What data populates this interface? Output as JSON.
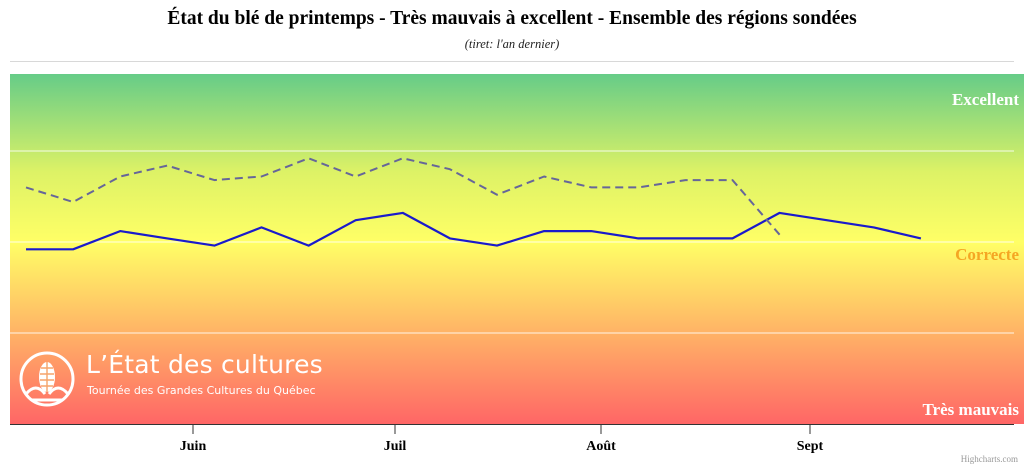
{
  "chart_data": {
    "type": "line",
    "title": "État du blé de printemps - Très mauvais à excellent - Ensemble des régions sondées",
    "subtitle": "(tiret: l'an dernier)",
    "y_scale": {
      "labels": [
        "Très mauvais",
        "Correcte",
        "Excellent"
      ],
      "ylim": [
        0,
        100
      ],
      "label_values": [
        0,
        50,
        100
      ],
      "gridlines": [
        25,
        50,
        75
      ]
    },
    "x_ticks": [
      "Juin",
      "Juil",
      "Août",
      "Sept"
    ],
    "series": [
      {
        "style": "solid",
        "color": "#1a1acc",
        "values": [
          48,
          48,
          53,
          51,
          49,
          54,
          49,
          56,
          58,
          51,
          49,
          53,
          53,
          51,
          51,
          51,
          58,
          56,
          54,
          51
        ]
      },
      {
        "style": "dashed",
        "color": "#666699",
        "values": [
          65,
          61,
          68,
          71,
          67,
          68,
          73,
          68,
          73,
          70,
          63,
          68,
          65,
          65,
          67,
          67,
          52
        ]
      }
    ],
    "background_gradient": [
      "#66cc88",
      "#ddf266",
      "#ffff66",
      "#ff6666"
    ]
  },
  "branding": {
    "logo_title": "L’État des cultures",
    "logo_subtitle": "Tournée des Grandes Cultures du Québec",
    "logo_icon": "corn-sun-icon"
  },
  "credit": "Highcharts.com"
}
